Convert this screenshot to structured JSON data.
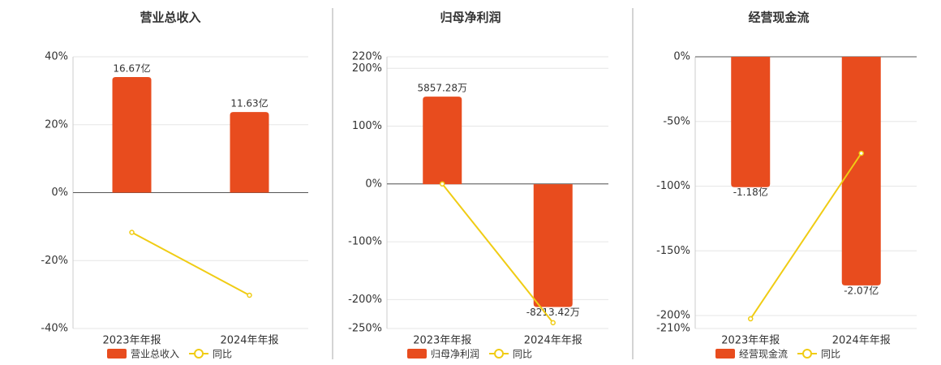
{
  "chart_data": [
    {
      "type": "bar",
      "title": "营业总收入",
      "categories": [
        "2023年年报",
        "2024年年报"
      ],
      "series": [
        {
          "name": "营业总收入",
          "type": "bar",
          "axis": "y2",
          "color": "#e84c1e",
          "values": [
            16.67,
            11.63
          ],
          "value_labels": [
            "16.67亿",
            "11.63亿"
          ]
        },
        {
          "name": "同比",
          "type": "line",
          "color": "#f0cc14",
          "values": [
            -11.7,
            -30.2
          ]
        }
      ],
      "ylim": [
        -40,
        40
      ],
      "yticks": [
        {
          "value": -40,
          "label": "-40%"
        },
        {
          "value": -20,
          "label": "-20%"
        },
        {
          "value": 0,
          "label": "0%"
        },
        {
          "value": 20,
          "label": "20%"
        },
        {
          "value": 40,
          "label": "40%"
        }
      ],
      "y2lim": [
        -19.6,
        19.6
      ],
      "grid": true
    },
    {
      "type": "bar",
      "title": "归母净利润",
      "categories": [
        "2023年年报",
        "2024年年报"
      ],
      "series": [
        {
          "name": "归母净利润",
          "type": "bar",
          "axis": "y2",
          "color": "#e84c1e",
          "values": [
            5857.28,
            -8213.42
          ],
          "value_labels": [
            "5857.28万",
            "-8213.42万"
          ]
        },
        {
          "name": "同比",
          "type": "line",
          "color": "#f0cc14",
          "values": [
            0,
            -240
          ]
        }
      ],
      "ylim": [
        -250,
        220
      ],
      "yticks": [
        {
          "value": -250,
          "label": "-250%"
        },
        {
          "value": -200,
          "label": "-200%"
        },
        {
          "value": -100,
          "label": "-100%"
        },
        {
          "value": 0,
          "label": "0%"
        },
        {
          "value": 100,
          "label": "100%"
        },
        {
          "value": 200,
          "label": "200%"
        },
        {
          "value": 220,
          "label": "220%"
        }
      ],
      "y2lim": [
        -9650,
        8520
      ],
      "grid": true
    },
    {
      "type": "bar",
      "title": "经营现金流",
      "categories": [
        "2023年年报",
        "2024年年报"
      ],
      "series": [
        {
          "name": "经营现金流",
          "type": "bar",
          "axis": "y2",
          "color": "#e84c1e",
          "values": [
            -1.18,
            -2.07
          ],
          "value_labels": [
            "-1.18亿",
            "-2.07亿"
          ]
        },
        {
          "name": "同比",
          "type": "line",
          "color": "#f0cc14",
          "values": [
            -202.5,
            -74.6
          ]
        }
      ],
      "ylim": [
        -210,
        0
      ],
      "yticks": [
        {
          "value": -210,
          "label": "-210%"
        },
        {
          "value": -200,
          "label": "-200%"
        },
        {
          "value": -150,
          "label": "-150%"
        },
        {
          "value": -100,
          "label": "-100%"
        },
        {
          "value": -50,
          "label": "-50%"
        },
        {
          "value": 0,
          "label": "0%"
        }
      ],
      "y2lim": [
        -2.46,
        0
      ],
      "grid": true
    }
  ]
}
